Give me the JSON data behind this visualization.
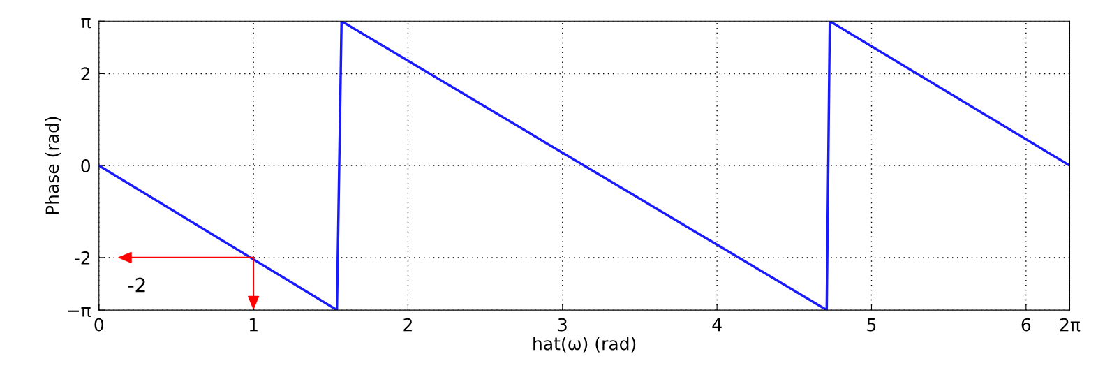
{
  "chart_data": {
    "type": "line",
    "xlabel": "hat(ω) (rad)",
    "ylabel": "Phase (rad)",
    "x": [
      0,
      1.54,
      1.57,
      4.71,
      4.73,
      6.283
    ],
    "series": [
      {
        "color": "#1a1aff",
        "values": [
          0,
          -3.14,
          3.14,
          -3.14,
          3.14,
          0
        ]
      }
    ],
    "xlim": [
      0,
      6.283
    ],
    "xticks": [
      0,
      1,
      2,
      3,
      4,
      5,
      6,
      {
        "value": 6.283,
        "label": "2π"
      }
    ],
    "ylim": [
      -3.1416,
      3.1416
    ],
    "yticks": [
      {
        "value": -3.1416,
        "label": "−π"
      },
      -2,
      0,
      2,
      {
        "value": 3.1416,
        "label": "π"
      }
    ],
    "grid": true,
    "marker": "none",
    "line_style": "solid",
    "annotations": [
      {
        "text": "-2",
        "x": 1,
        "y": -2
      }
    ]
  }
}
